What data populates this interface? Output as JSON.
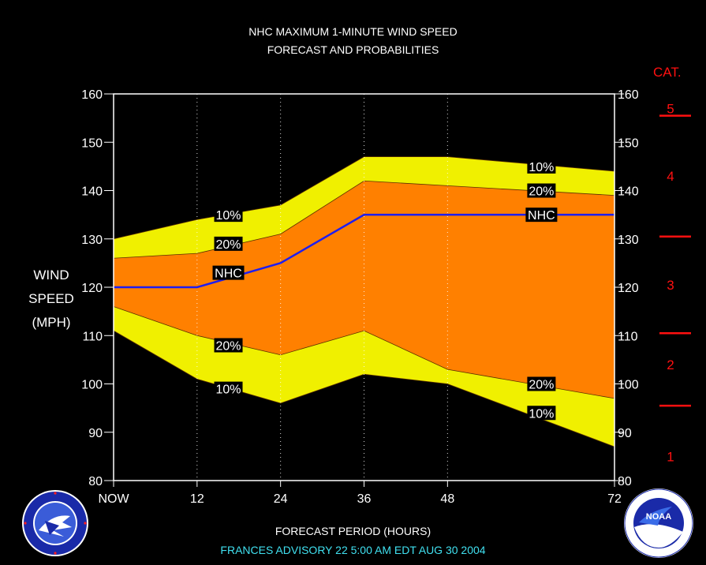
{
  "title_line1": "NHC MAXIMUM 1-MINUTE WIND SPEED",
  "title_line2": "FORECAST AND PROBABILITIES",
  "y_axis_label": [
    "WIND",
    "SPEED",
    "(MPH)"
  ],
  "x_axis_label": "FORECAST PERIOD (HOURS)",
  "advisory_line": "FRANCES   ADVISORY  22 5:00 AM EDT AUG 30 2004",
  "category_header": "CAT.",
  "categories": [
    {
      "label": "5",
      "y": 157,
      "underline": true
    },
    {
      "label": "4",
      "y": 143
    },
    {
      "label": "3",
      "y": 120.5
    },
    {
      "label": "2",
      "y": 104
    },
    {
      "label": "1",
      "y": 85
    }
  ],
  "category_boundaries": [
    130.5,
    110.5,
    95.5,
    155.5
  ],
  "colors": {
    "background": "#000000",
    "band_10": "#f0f000",
    "band_20": "#ff8000",
    "nhc_line": "#1e1ef0",
    "category": "#ff1010",
    "advisory": "#40e0f0",
    "grid": "#ffffff"
  },
  "chart_data": {
    "type": "area",
    "title": "NHC MAXIMUM 1-MINUTE WIND SPEED FORECAST AND PROBABILITIES",
    "xlabel": "FORECAST PERIOD (HOURS)",
    "ylabel": "WIND SPEED (MPH)",
    "xlim": [
      0,
      72
    ],
    "ylim": [
      80,
      160
    ],
    "x_ticks": [
      0,
      12,
      24,
      36,
      48,
      72
    ],
    "x_tick_labels": [
      "NOW",
      "12",
      "24",
      "36",
      "48",
      "72"
    ],
    "y_ticks": [
      80,
      90,
      100,
      110,
      120,
      130,
      140,
      150,
      160
    ],
    "x": [
      0,
      12,
      24,
      36,
      48,
      72
    ],
    "series": [
      {
        "name": "10%",
        "values": [
          130,
          134,
          137,
          147,
          147,
          144
        ]
      },
      {
        "name": "20%",
        "values": [
          126,
          127,
          131,
          142,
          141,
          139
        ]
      },
      {
        "name": "NHC",
        "values": [
          120,
          120,
          125,
          135,
          135,
          135
        ]
      },
      {
        "name": "20%",
        "values": [
          116,
          110,
          106,
          111,
          103,
          97
        ]
      },
      {
        "name": "10%",
        "values": [
          111,
          101,
          96,
          102,
          100,
          87
        ]
      }
    ],
    "annotations": [
      {
        "text": "10%",
        "x": 16.5,
        "y": 135
      },
      {
        "text": "20%",
        "x": 16.5,
        "y": 129
      },
      {
        "text": "NHC",
        "x": 16.5,
        "y": 123
      },
      {
        "text": "20%",
        "x": 16.5,
        "y": 108
      },
      {
        "text": "10%",
        "x": 16.5,
        "y": 99
      },
      {
        "text": "10%",
        "x": 61.5,
        "y": 145
      },
      {
        "text": "20%",
        "x": 61.5,
        "y": 140
      },
      {
        "text": "NHC",
        "x": 61.5,
        "y": 135
      },
      {
        "text": "20%",
        "x": 61.5,
        "y": 100
      },
      {
        "text": "10%",
        "x": 61.5,
        "y": 94
      }
    ],
    "grid": "vertical-dotted"
  },
  "logos": {
    "left": {
      "name": "national-weather-service-logo",
      "ring_text": "NATIONAL WEATHER SERVICE"
    },
    "right": {
      "name": "noaa-logo",
      "text": "NOAA",
      "ring_text": "NATIONAL OCEANIC AND ATMOSPHERIC ADMINISTRATION U.S. DEPARTMENT OF COMMERCE"
    }
  }
}
